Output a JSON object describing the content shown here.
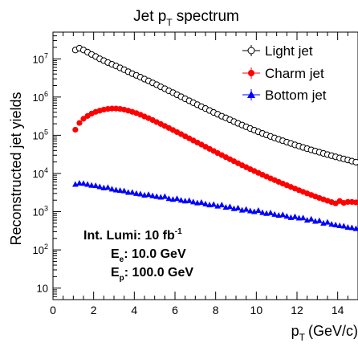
{
  "chart_data": {
    "type": "scatter",
    "title": "Jet p",
    "title_sub": "T",
    "title_suffix": "spectrum",
    "xlabel": "p",
    "xlabel_sub": "T",
    "xlabel_suffix": "(GeV/c)",
    "ylabel": "Reconstructed jet yields",
    "xlim": [
      0,
      15
    ],
    "ylim": [
      5,
      50000000
    ],
    "yscale": "log",
    "x_ticks": [
      "0",
      "2",
      "4",
      "6",
      "8",
      "10",
      "12",
      "14"
    ],
    "legend_position": "top-right",
    "grid": false,
    "annotations": {
      "lumi": "Int. Lumi: 10 fb",
      "lumi_sup": "-1",
      "ee_pre": "E",
      "ee_sub": "e",
      "ee_post": ": 10.0 GeV",
      "ep_pre": "E",
      "ep_sub": "p",
      "ep_post": ": 100.0 GeV"
    },
    "series": [
      {
        "name": "Light jet",
        "marker": "open-circle",
        "color": "#000000",
        "x": [
          1.1,
          1.3,
          1.5,
          1.7,
          1.9,
          2.1,
          2.3,
          2.5,
          2.7,
          2.9,
          3.1,
          3.3,
          3.5,
          3.7,
          3.9,
          4.1,
          4.3,
          4.5,
          4.7,
          4.9,
          5.1,
          5.3,
          5.5,
          5.7,
          5.9,
          6.1,
          6.3,
          6.5,
          6.7,
          6.9,
          7.1,
          7.3,
          7.5,
          7.7,
          7.9,
          8.1,
          8.3,
          8.5,
          8.7,
          8.9,
          9.1,
          9.3,
          9.5,
          9.7,
          9.9,
          10.1,
          10.3,
          10.5,
          10.7,
          10.9,
          11.1,
          11.3,
          11.5,
          11.7,
          11.9,
          12.1,
          12.3,
          12.5,
          12.7,
          12.9,
          13.1,
          13.3,
          13.5,
          13.7,
          13.9,
          14.1,
          14.3,
          14.5,
          14.7,
          14.9
        ],
        "y": [
          17000000,
          19000000,
          17000000,
          15000000,
          13000000,
          11500000,
          10000000,
          9000000,
          8000000,
          7200000,
          6500000,
          5800000,
          5200000,
          4600000,
          4100000,
          3700000,
          3300000,
          2950000,
          2650000,
          2350000,
          2100000,
          1850000,
          1650000,
          1450000,
          1300000,
          1150000,
          1020000,
          900000,
          800000,
          710000,
          630000,
          560000,
          500000,
          445000,
          395000,
          355000,
          315000,
          285000,
          255000,
          228000,
          205000,
          185000,
          167000,
          150000,
          136000,
          123000,
          112000,
          102000,
          93000,
          85000,
          78000,
          72000,
          66000,
          61000,
          56000,
          52000,
          48000,
          44500,
          41500,
          38500,
          36000,
          33500,
          31200,
          29200,
          27300,
          25500,
          24000,
          22500,
          21000,
          19800
        ]
      },
      {
        "name": "Charm jet",
        "marker": "filled-circle",
        "color": "#ff0000",
        "x": [
          1.1,
          1.3,
          1.5,
          1.7,
          1.9,
          2.1,
          2.3,
          2.5,
          2.7,
          2.9,
          3.1,
          3.3,
          3.5,
          3.7,
          3.9,
          4.1,
          4.3,
          4.5,
          4.7,
          4.9,
          5.1,
          5.3,
          5.5,
          5.7,
          5.9,
          6.1,
          6.3,
          6.5,
          6.7,
          6.9,
          7.1,
          7.3,
          7.5,
          7.7,
          7.9,
          8.1,
          8.3,
          8.5,
          8.7,
          8.9,
          9.1,
          9.3,
          9.5,
          9.7,
          9.9,
          10.1,
          10.3,
          10.5,
          10.7,
          10.9,
          11.1,
          11.3,
          11.5,
          11.7,
          11.9,
          12.1,
          12.3,
          12.5,
          12.7,
          12.9,
          13.1,
          13.3,
          13.5,
          13.7,
          13.9,
          14.1,
          14.3,
          14.5,
          14.7,
          14.9
        ],
        "y": [
          140000,
          210000,
          270000,
          320000,
          370000,
          410000,
          440000,
          470000,
          490000,
          500000,
          500000,
          490000,
          470000,
          440000,
          410000,
          380000,
          345000,
          310000,
          280000,
          250000,
          222000,
          197000,
          175000,
          155000,
          137000,
          121000,
          107000,
          94000,
          83000,
          73000,
          64500,
          57000,
          50000,
          44000,
          38800,
          34200,
          30200,
          26700,
          23600,
          20900,
          18500,
          16400,
          14600,
          13000,
          11600,
          10350,
          9250,
          8300,
          7450,
          6700,
          6030,
          5440,
          4910,
          4440,
          4020,
          3650,
          3310,
          3010,
          2740,
          2500,
          2290,
          2100,
          1930,
          1780,
          1650,
          1900,
          1700,
          1800,
          1800,
          1750
        ]
      },
      {
        "name": "Bottom jet",
        "marker": "filled-triangle",
        "color": "#0000ff",
        "x": [
          1.1,
          1.3,
          1.5,
          1.7,
          1.9,
          2.1,
          2.3,
          2.5,
          2.7,
          2.9,
          3.1,
          3.3,
          3.5,
          3.7,
          3.9,
          4.1,
          4.3,
          4.5,
          4.7,
          4.9,
          5.1,
          5.3,
          5.5,
          5.7,
          5.9,
          6.1,
          6.3,
          6.5,
          6.7,
          6.9,
          7.1,
          7.3,
          7.5,
          7.7,
          7.9,
          8.1,
          8.3,
          8.5,
          8.7,
          8.9,
          9.1,
          9.3,
          9.5,
          9.7,
          9.9,
          10.1,
          10.3,
          10.5,
          10.7,
          10.9,
          11.1,
          11.3,
          11.5,
          11.7,
          11.9,
          12.1,
          12.3,
          12.5,
          12.7,
          12.9,
          13.1,
          13.3,
          13.5,
          13.7,
          13.9,
          14.1,
          14.3,
          14.5,
          14.7,
          14.9
        ],
        "y": [
          5200,
          5600,
          5500,
          5200,
          4900,
          4800,
          4500,
          4200,
          4300,
          3900,
          3700,
          3600,
          3500,
          3200,
          3200,
          3000,
          2900,
          2700,
          2800,
          2600,
          2500,
          2400,
          2500,
          2200,
          2100,
          2200,
          2000,
          1900,
          1950,
          1800,
          1700,
          1750,
          1600,
          1500,
          1550,
          1400,
          1500,
          1300,
          1350,
          1200,
          1250,
          1100,
          1150,
          1050,
          1000,
          1080,
          950,
          900,
          930,
          850,
          800,
          830,
          760,
          700,
          740,
          680,
          690,
          600,
          640,
          560,
          580,
          500,
          530,
          470,
          450,
          430,
          420,
          390,
          380,
          360
        ]
      }
    ]
  }
}
